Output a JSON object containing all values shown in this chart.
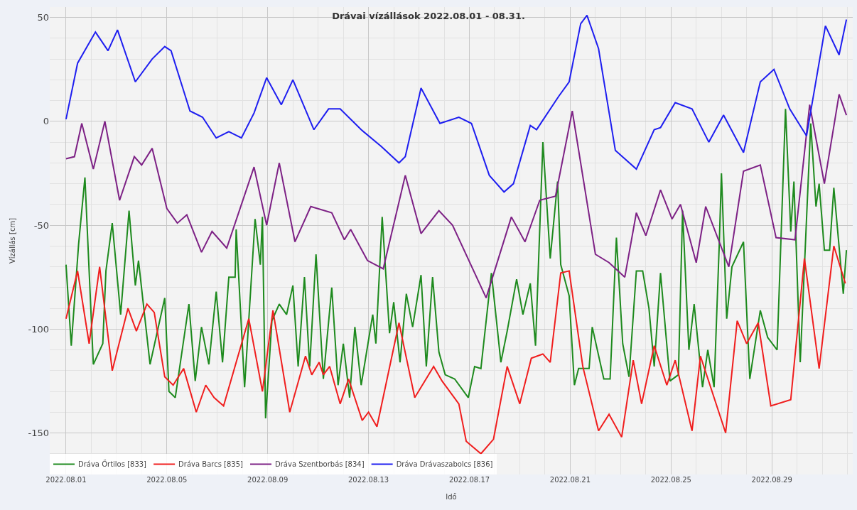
{
  "chart_data": {
    "type": "line",
    "title": "Drávai vízállások 2022.08.01 - 08.31.",
    "xlabel": "Idő",
    "ylabel": "Vízállás [cm]",
    "xlim": [
      "2022-07-31T08:30",
      "2022-09-01T05:00"
    ],
    "ylim": [
      -170,
      55
    ],
    "xticks": [
      {
        "value": "2022-08-01",
        "label": "2022.08.01"
      },
      {
        "value": "2022-08-05",
        "label": "2022.08.05"
      },
      {
        "value": "2022-08-09",
        "label": "2022.08.09"
      },
      {
        "value": "2022-08-13",
        "label": "2022.08.13"
      },
      {
        "value": "2022-08-17",
        "label": "2022.08.17"
      },
      {
        "value": "2022-08-21",
        "label": "2022.08.21"
      },
      {
        "value": "2022-08-25",
        "label": "2022.08.25"
      },
      {
        "value": "2022-08-29",
        "label": "2022.08.29"
      }
    ],
    "yticks": [
      -150,
      -100,
      -50,
      0,
      50
    ],
    "grid": true,
    "legend": "bottom",
    "series": [
      {
        "name": "Dráva Őrtilos [833]",
        "color": "#1e8a1e",
        "x": [
          "2022-08-01T00:00",
          "2022-08-01T05:00",
          "2022-08-01T12:00",
          "2022-08-01T18:00",
          "2022-08-02T02:00",
          "2022-08-02T11:00",
          "2022-08-02T14:00",
          "2022-08-02T20:00",
          "2022-08-03T04:00",
          "2022-08-03T12:00",
          "2022-08-03T18:00",
          "2022-08-03T21:00",
          "2022-08-04T08:00",
          "2022-08-04T22:00",
          "2022-08-05T02:00",
          "2022-08-05T08:00",
          "2022-08-05T21:00",
          "2022-08-06T03:00",
          "2022-08-06T09:00",
          "2022-08-06T16:00",
          "2022-08-06T23:00",
          "2022-08-07T05:00",
          "2022-08-07T11:00",
          "2022-08-07T17:00",
          "2022-08-07T18:00",
          "2022-08-08T02:00",
          "2022-08-08T12:00",
          "2022-08-08T17:00",
          "2022-08-08T19:00",
          "2022-08-08T22:00",
          "2022-08-09T04:00",
          "2022-08-09T11:00",
          "2022-08-09T18:00",
          "2022-08-10T00:00",
          "2022-08-10T05:00",
          "2022-08-10T11:00",
          "2022-08-10T16:00",
          "2022-08-10T22:00",
          "2022-08-11T05:00",
          "2022-08-11T13:00",
          "2022-08-11T19:00",
          "2022-08-12T00:00",
          "2022-08-12T06:00",
          "2022-08-12T11:00",
          "2022-08-12T17:00",
          "2022-08-13T04:00",
          "2022-08-13T07:00",
          "2022-08-13T13:00",
          "2022-08-13T20:00",
          "2022-08-14T00:00",
          "2022-08-14T06:00",
          "2022-08-14T12:00",
          "2022-08-14T18:00",
          "2022-08-15T02:00",
          "2022-08-15T07:00",
          "2022-08-15T13:00",
          "2022-08-15T19:00",
          "2022-08-16T01:00",
          "2022-08-16T10:00",
          "2022-08-16T23:00",
          "2022-08-17T05:00",
          "2022-08-17T11:00",
          "2022-08-17T21:00",
          "2022-08-18T06:00",
          "2022-08-18T12:00",
          "2022-08-18T21:00",
          "2022-08-19T03:00",
          "2022-08-19T10:00",
          "2022-08-19T15:00",
          "2022-08-19T22:00",
          "2022-08-20T05:00",
          "2022-08-20T12:00",
          "2022-08-20T15:00",
          "2022-08-20T23:00",
          "2022-08-21T04:00",
          "2022-08-21T08:00",
          "2022-08-21T18:00",
          "2022-08-21T21:00",
          "2022-08-22T08:00",
          "2022-08-22T14:00",
          "2022-08-22T20:00",
          "2022-08-23T02:00",
          "2022-08-23T08:00",
          "2022-08-23T15:00",
          "2022-08-23T21:00",
          "2022-08-24T03:00",
          "2022-08-24T08:00",
          "2022-08-24T14:00",
          "2022-08-24T23:00",
          "2022-08-25T07:00",
          "2022-08-25T11:00",
          "2022-08-25T17:00",
          "2022-08-25T22:00",
          "2022-08-26T06:00",
          "2022-08-26T11:00",
          "2022-08-26T17:00",
          "2022-08-26T22:00",
          "2022-08-27T00:00",
          "2022-08-27T05:00",
          "2022-08-27T10:00",
          "2022-08-27T21:00",
          "2022-08-28T03:00",
          "2022-08-28T13:00",
          "2022-08-28T20:00",
          "2022-08-29T05:00",
          "2022-08-29T13:00",
          "2022-08-29T18:00",
          "2022-08-29T21:00",
          "2022-08-30T03:00",
          "2022-08-30T13:00",
          "2022-08-30T18:00",
          "2022-08-30T21:00",
          "2022-08-31T02:00",
          "2022-08-31T07:00",
          "2022-08-31T11:00",
          "2022-08-31T20:00",
          "2022-08-31T23:00"
        ],
        "values": [
          -69,
          -108,
          -59,
          -27,
          -117,
          -107,
          -72,
          -49,
          -93,
          -43,
          -79,
          -67,
          -117,
          -85,
          -130,
          -133,
          -88,
          -125,
          -99,
          -117,
          -82,
          -116,
          -75,
          -75,
          -52,
          -128,
          -47,
          -69,
          -46,
          -143,
          -96,
          -88,
          -93,
          -79,
          -118,
          -75,
          -118,
          -64,
          -124,
          -80,
          -127,
          -107,
          -133,
          -99,
          -127,
          -93,
          -107,
          -46,
          -102,
          -87,
          -116,
          -83,
          -99,
          -74,
          -118,
          -75,
          -111,
          -122,
          -124,
          -133,
          -118,
          -119,
          -73,
          -116,
          -101,
          -76,
          -93,
          -78,
          -108,
          -10,
          -66,
          -29,
          -69,
          -84,
          -127,
          -119,
          -119,
          -99,
          -124,
          -124,
          -56,
          -107,
          -123,
          -72,
          -72,
          -90,
          -118,
          -73,
          -125,
          -122,
          -43,
          -110,
          -88,
          -128,
          -110,
          -128,
          -58,
          -25,
          -95,
          -70,
          -58,
          -124,
          -91,
          -104,
          -110,
          6,
          -53,
          -29,
          -116,
          -1,
          -41,
          -30,
          -62,
          -62,
          -32,
          -83,
          -62
        ]
      },
      {
        "name": "Dráva Barcs [835]",
        "color": "#f01e1e",
        "x": [
          "2022-08-01T00:00",
          "2022-08-01T11:00",
          "2022-08-01T22:00",
          "2022-08-02T08:00",
          "2022-08-02T20:00",
          "2022-08-03T11:00",
          "2022-08-03T19:00",
          "2022-08-04T05:00",
          "2022-08-04T12:00",
          "2022-08-04T22:00",
          "2022-08-05T06:00",
          "2022-08-05T16:00",
          "2022-08-06T04:00",
          "2022-08-06T13:00",
          "2022-08-06T21:00",
          "2022-08-07T06:00",
          "2022-08-08T06:00",
          "2022-08-08T19:00",
          "2022-08-09T05:00",
          "2022-08-09T21:00",
          "2022-08-10T12:00",
          "2022-08-10T18:00",
          "2022-08-11T01:00",
          "2022-08-11T05:00",
          "2022-08-11T11:00",
          "2022-08-11T21:00",
          "2022-08-12T05:00",
          "2022-08-12T18:00",
          "2022-08-13T00:00",
          "2022-08-13T08:00",
          "2022-08-14T05:00",
          "2022-08-14T20:00",
          "2022-08-15T14:00",
          "2022-08-15T22:00",
          "2022-08-16T14:00",
          "2022-08-16T21:00",
          "2022-08-17T11:00",
          "2022-08-17T23:00",
          "2022-08-18T12:00",
          "2022-08-19T00:00",
          "2022-08-19T11:00",
          "2022-08-19T22:00",
          "2022-08-20T05:00",
          "2022-08-20T15:00",
          "2022-08-20T23:00",
          "2022-08-21T12:00",
          "2022-08-22T03:00",
          "2022-08-22T13:00",
          "2022-08-23T01:00",
          "2022-08-23T12:00",
          "2022-08-23T20:00",
          "2022-08-24T08:00",
          "2022-08-24T20:00",
          "2022-08-25T04:00",
          "2022-08-25T20:00",
          "2022-08-26T04:00",
          "2022-08-27T04:00",
          "2022-08-27T15:00",
          "2022-08-28T00:00",
          "2022-08-28T11:00",
          "2022-08-28T23:00",
          "2022-08-29T18:00",
          "2022-08-30T07:00",
          "2022-08-30T21:00",
          "2022-08-31T11:00",
          "2022-08-31T22:00"
        ],
        "values": [
          -95,
          -72,
          -107,
          -70,
          -120,
          -90,
          -101,
          -88,
          -92,
          -123,
          -127,
          -119,
          -140,
          -127,
          -133,
          -137,
          -95,
          -130,
          -91,
          -140,
          -113,
          -122,
          -116,
          -122,
          -118,
          -136,
          -124,
          -144,
          -140,
          -147,
          -97,
          -133,
          -118,
          -125,
          -136,
          -154,
          -160,
          -153,
          -118,
          -136,
          -114,
          -112,
          -116,
          -73,
          -72,
          -118,
          -149,
          -141,
          -152,
          -115,
          -136,
          -108,
          -127,
          -115,
          -149,
          -113,
          -150,
          -96,
          -107,
          -97,
          -137,
          -134,
          -66,
          -119,
          -60,
          -78
        ]
      },
      {
        "name": "Dráva Szentborbás [834]",
        "color": "#7d2185",
        "x": [
          "2022-08-01T00:00",
          "2022-08-01T08:00",
          "2022-08-01T15:00",
          "2022-08-02T02:00",
          "2022-08-02T13:00",
          "2022-08-03T03:00",
          "2022-08-03T17:00",
          "2022-08-04T00:00",
          "2022-08-04T10:00",
          "2022-08-05T00:00",
          "2022-08-05T10:00",
          "2022-08-05T19:00",
          "2022-08-06T09:00",
          "2022-08-06T19:00",
          "2022-08-07T09:00",
          "2022-08-08T11:00",
          "2022-08-08T23:00",
          "2022-08-09T11:00",
          "2022-08-10T02:00",
          "2022-08-10T17:00",
          "2022-08-11T13:00",
          "2022-08-12T01:00",
          "2022-08-12T07:00",
          "2022-08-12T23:00",
          "2022-08-13T14:00",
          "2022-08-14T11:00",
          "2022-08-15T02:00",
          "2022-08-15T19:00",
          "2022-08-16T08:00",
          "2022-08-17T16:00",
          "2022-08-18T16:00",
          "2022-08-19T05:00",
          "2022-08-19T19:00",
          "2022-08-20T10:00",
          "2022-08-21T02:00",
          "2022-08-22T00:00",
          "2022-08-22T13:00",
          "2022-08-23T04:00",
          "2022-08-23T15:00",
          "2022-08-24T00:00",
          "2022-08-24T14:00",
          "2022-08-25T01:00",
          "2022-08-25T09:00",
          "2022-08-26T00:00",
          "2022-08-26T09:00",
          "2022-08-27T07:00",
          "2022-08-27T21:00",
          "2022-08-28T13:00",
          "2022-08-29T04:00",
          "2022-08-29T22:00",
          "2022-08-30T12:00",
          "2022-08-31T02:00",
          "2022-08-31T16:00",
          "2022-08-31T23:00"
        ],
        "values": [
          -18,
          -17,
          -1,
          -23,
          0,
          -38,
          -17,
          -21,
          -13,
          -42,
          -49,
          -45,
          -63,
          -53,
          -61,
          -22,
          -50,
          -20,
          -58,
          -41,
          -44,
          -57,
          -52,
          -67,
          -71,
          -26,
          -54,
          -43,
          -50,
          -85,
          -46,
          -58,
          -38,
          -36,
          5,
          -64,
          -68,
          -75,
          -44,
          -55,
          -33,
          -47,
          -40,
          -68,
          -41,
          -70,
          -24,
          -21,
          -56,
          -57,
          8,
          -30,
          13,
          3
        ]
      },
      {
        "name": "Dráva Drávaszabolcs [836]",
        "color": "#1e1ef0",
        "x": [
          "2022-08-01T00:00",
          "2022-08-01T11:00",
          "2022-08-02T04:00",
          "2022-08-02T16:00",
          "2022-08-03T01:00",
          "2022-08-03T18:00",
          "2022-08-04T10:00",
          "2022-08-04T22:00",
          "2022-08-05T04:00",
          "2022-08-05T22:00",
          "2022-08-06T10:00",
          "2022-08-06T23:00",
          "2022-08-07T11:00",
          "2022-08-07T23:00",
          "2022-08-08T11:00",
          "2022-08-08T23:00",
          "2022-08-09T13:00",
          "2022-08-10T00:00",
          "2022-08-10T20:00",
          "2022-08-11T10:00",
          "2022-08-11T21:00",
          "2022-08-12T17:00",
          "2022-08-13T12:00",
          "2022-08-14T05:00",
          "2022-08-14T11:00",
          "2022-08-15T02:00",
          "2022-08-15T20:00",
          "2022-08-16T14:00",
          "2022-08-17T02:00",
          "2022-08-17T19:00",
          "2022-08-18T09:00",
          "2022-08-18T18:00",
          "2022-08-19T10:00",
          "2022-08-19T16:00",
          "2022-08-20T13:00",
          "2022-08-20T23:00",
          "2022-08-21T10:00",
          "2022-08-21T16:00",
          "2022-08-22T03:00",
          "2022-08-22T19:00",
          "2022-08-23T15:00",
          "2022-08-24T08:00",
          "2022-08-24T14:00",
          "2022-08-25T04:00",
          "2022-08-25T20:00",
          "2022-08-26T12:00",
          "2022-08-27T02:00",
          "2022-08-27T21:00",
          "2022-08-28T13:00",
          "2022-08-29T02:00",
          "2022-08-29T17:00",
          "2022-08-30T09:00",
          "2022-08-31T03:00",
          "2022-08-31T16:00",
          "2022-08-31T23:00"
        ],
        "values": [
          1,
          28,
          43,
          34,
          44,
          19,
          30,
          36,
          34,
          5,
          2,
          -8,
          -5,
          -8,
          4,
          21,
          8,
          20,
          -4,
          6,
          6,
          -4,
          -12,
          -20,
          -17,
          16,
          -1,
          2,
          -1,
          -26,
          -34,
          -30,
          -2,
          -4,
          12,
          19,
          47,
          51,
          35,
          -14,
          -23,
          -4,
          -3,
          9,
          6,
          -10,
          3,
          -15,
          19,
          25,
          6,
          -7,
          46,
          32,
          49
        ]
      }
    ]
  }
}
